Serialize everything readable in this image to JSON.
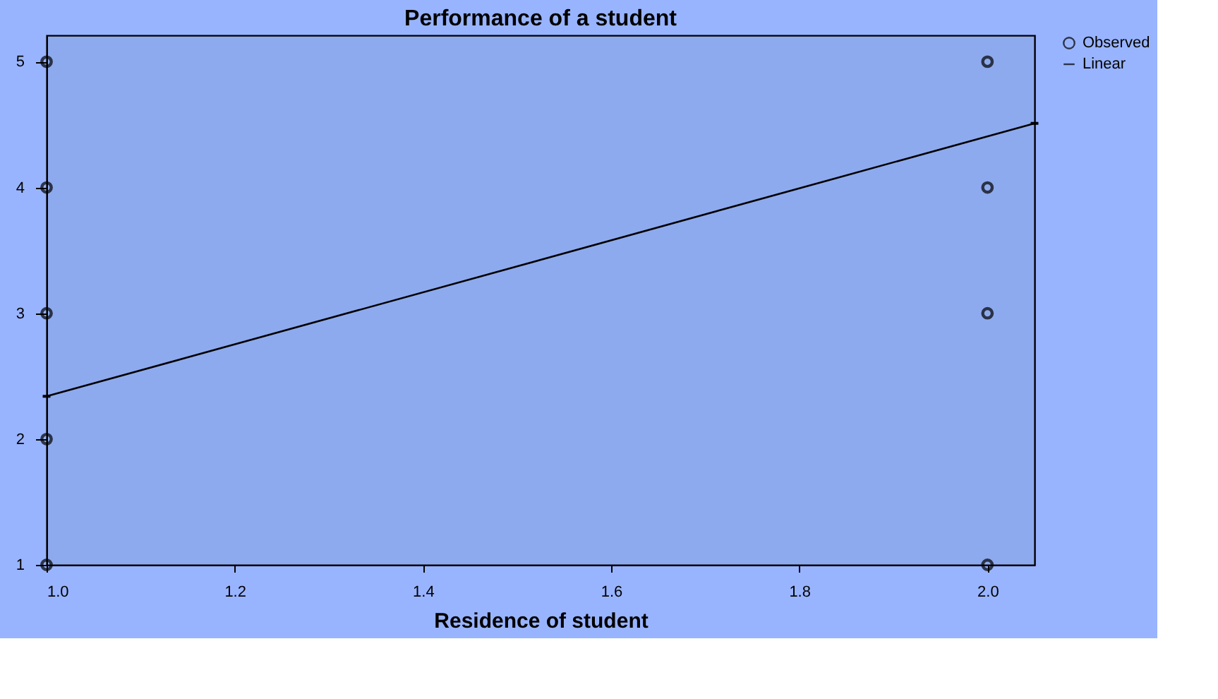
{
  "chart_data": {
    "type": "scatter",
    "title": "Performance of a student",
    "xlabel": "Residence of student",
    "xlim": [
      1.0,
      2.05
    ],
    "xticks": [
      {
        "value": 1.0,
        "label": "1.0"
      },
      1.2,
      1.4,
      1.6,
      1.8,
      {
        "value": 2.0,
        "label": "2.0"
      }
    ],
    "ylim": [
      1,
      5.21
    ],
    "yticks": [
      1,
      2,
      3,
      4,
      5
    ],
    "series": [
      {
        "name": "Observed",
        "type": "scatter",
        "color": "#000000",
        "marker": "circle",
        "x": [
          1,
          1,
          1,
          1,
          1,
          2,
          2,
          2,
          2
        ],
        "values": [
          5,
          4,
          3,
          2,
          1,
          5,
          4,
          3,
          1
        ]
      },
      {
        "name": "Linear",
        "type": "line",
        "color": "#000000",
        "marker": "none",
        "line_style": "solid",
        "x": [
          1.0,
          2.05
        ],
        "values": [
          2.34,
          4.51
        ]
      }
    ],
    "grid": false,
    "legend": "top right"
  }
}
